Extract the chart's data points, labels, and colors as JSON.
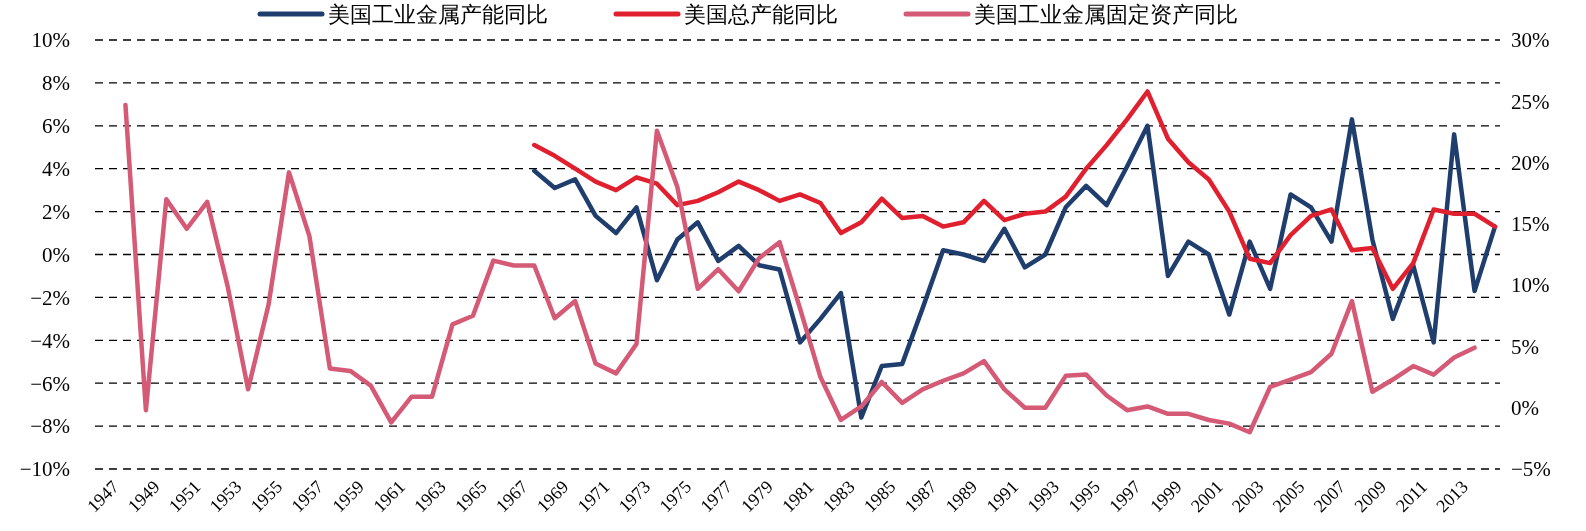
{
  "chart_data": {
    "type": "line",
    "categories": [
      "1947",
      null,
      "1949",
      null,
      "1951",
      null,
      "1953",
      null,
      "1955",
      null,
      "1957",
      null,
      "1959",
      null,
      "1961",
      null,
      "1963",
      null,
      "1965",
      null,
      "1967",
      null,
      "1969",
      null,
      "1971",
      null,
      "1973",
      null,
      "1975",
      null,
      "1977",
      null,
      "1979",
      null,
      "1981",
      null,
      "1983",
      null,
      "1985",
      null,
      "1987",
      null,
      "1989",
      null,
      "1991",
      null,
      "1993",
      null,
      "1995",
      null,
      "1997",
      null,
      "1999",
      null,
      "2001",
      null,
      "2003",
      null,
      "2005",
      null,
      "2007",
      null,
      "2009",
      null,
      "2011",
      null,
      "2013",
      null,
      null
    ],
    "series": [
      {
        "name": "美国工业金属产能同比",
        "color": "#1f3e6e",
        "values": [
          null,
          null,
          null,
          null,
          null,
          null,
          null,
          null,
          null,
          null,
          null,
          null,
          null,
          null,
          null,
          null,
          null,
          null,
          null,
          null,
          null,
          3.9,
          3.1,
          3.5,
          1.8,
          1.0,
          2.2,
          -1.2,
          0.7,
          1.5,
          -0.3,
          0.4,
          -0.5,
          -0.7,
          -4.1,
          -3.0,
          -1.8,
          -7.6,
          -5.2,
          -5.1,
          -2.5,
          0.2,
          0.0,
          -0.3,
          1.2,
          -0.6,
          0.0,
          2.2,
          3.2,
          2.3,
          4.1,
          6.0,
          -1.0,
          0.6,
          0.0,
          -2.8,
          0.6,
          -1.6,
          2.8,
          2.2,
          0.6,
          6.3,
          0.7,
          -3.0,
          -0.5,
          -4.1,
          5.6,
          -1.7,
          1.3
        ]
      },
      {
        "name": "美国总产能同比",
        "color": "#e0202e",
        "values": [
          null,
          null,
          null,
          null,
          null,
          null,
          null,
          null,
          null,
          null,
          null,
          null,
          null,
          null,
          null,
          null,
          null,
          null,
          null,
          null,
          null,
          5.1,
          4.6,
          4.0,
          3.4,
          3.0,
          3.6,
          3.3,
          2.3,
          2.5,
          2.9,
          3.4,
          3.0,
          2.5,
          2.8,
          2.4,
          1.0,
          1.5,
          2.6,
          1.7,
          1.8,
          1.3,
          1.5,
          2.5,
          1.6,
          1.9,
          2.0,
          2.7,
          4.0,
          5.1,
          6.3,
          7.6,
          5.4,
          4.3,
          3.5,
          2.0,
          -0.2,
          -0.4,
          0.9,
          1.8,
          2.1,
          0.2,
          0.3,
          -1.6,
          -0.4,
          2.1,
          1.9,
          1.9,
          1.3
        ]
      },
      {
        "name": "美国工业金属固定资产同比",
        "color": "#d45a76",
        "axis": "y2",
        "values": [
          null,
          24.7,
          -0.2,
          17.0,
          14.6,
          16.8,
          9.9,
          1.5,
          8.4,
          19.2,
          14.0,
          3.2,
          3.0,
          1.8,
          -1.2,
          0.9,
          0.9,
          6.8,
          7.5,
          12.0,
          11.6,
          11.6,
          7.3,
          8.7,
          3.6,
          2.8,
          5.2,
          22.6,
          18.0,
          9.7,
          11.3,
          9.5,
          12.2,
          13.5,
          8.1,
          2.5,
          -1.0,
          0.1,
          2.1,
          0.4,
          1.5,
          2.2,
          2.8,
          3.8,
          1.5,
          0.0,
          0.0,
          2.6,
          2.7,
          1.0,
          -0.2,
          0.1,
          -0.5,
          -0.5,
          -1.0,
          -1.3,
          -2.0,
          1.7,
          2.3,
          2.9,
          4.4,
          8.7,
          1.3,
          2.3,
          3.4,
          2.7,
          4.1,
          4.9,
          null
        ]
      }
    ],
    "ylim": [
      -10,
      10
    ],
    "yticks": [
      {
        "value": -10,
        "label": "−10%"
      },
      {
        "value": -8,
        "label": "−8%"
      },
      {
        "value": -6,
        "label": "−6%"
      },
      {
        "value": -4,
        "label": "−4%"
      },
      {
        "value": -2,
        "label": "−2%"
      },
      {
        "value": 0,
        "label": "0%"
      },
      {
        "value": 2,
        "label": "2%"
      },
      {
        "value": 4,
        "label": "4%"
      },
      {
        "value": 6,
        "label": "6%"
      },
      {
        "value": 8,
        "label": "8%"
      },
      {
        "value": 10,
        "label": "10%"
      }
    ],
    "y2lim": [
      -5,
      30
    ],
    "y2ticks": [
      {
        "value": -5,
        "label": "−5%"
      },
      {
        "value": 0,
        "label": "0%"
      },
      {
        "value": 5,
        "label": "5%"
      },
      {
        "value": 10,
        "label": "10%"
      },
      {
        "value": 15,
        "label": "15%"
      },
      {
        "value": 20,
        "label": "20%"
      },
      {
        "value": 25,
        "label": "25%"
      },
      {
        "value": 30,
        "label": "30%"
      }
    ],
    "grid": "y",
    "legend": "top",
    "line_style": "solid",
    "marker": "none"
  }
}
